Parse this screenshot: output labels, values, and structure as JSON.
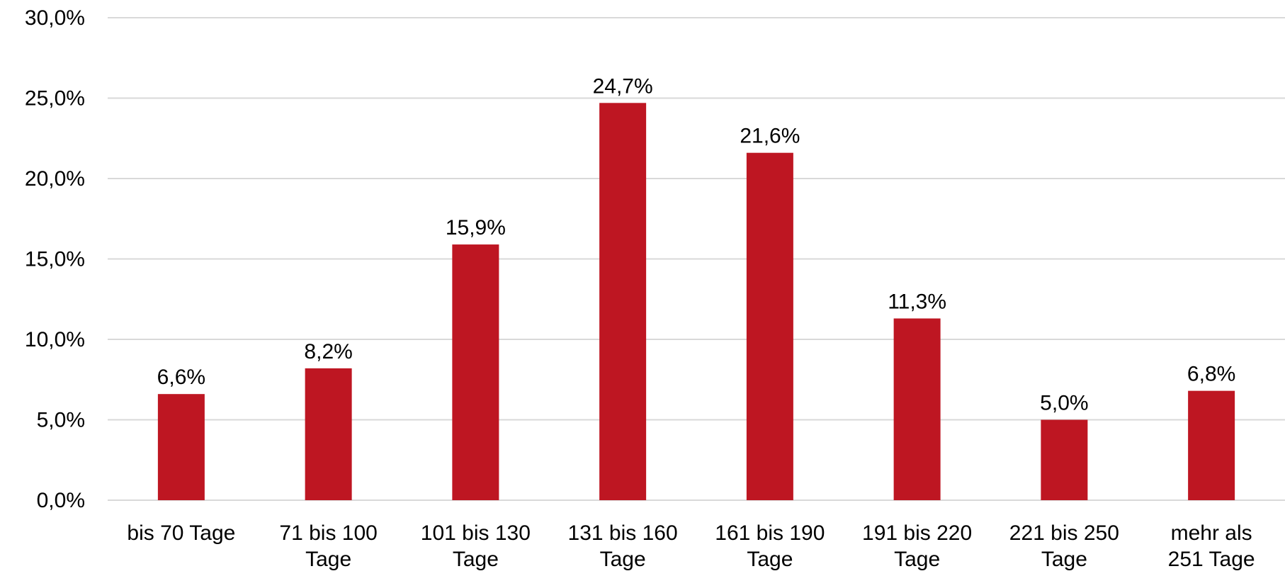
{
  "chart_data": {
    "type": "bar",
    "title": "",
    "xlabel": "",
    "ylabel": "",
    "categories": [
      [
        "bis 70 Tage"
      ],
      [
        "71 bis 100",
        "Tage"
      ],
      [
        "101 bis 130",
        "Tage"
      ],
      [
        "131 bis 160",
        "Tage"
      ],
      [
        "161 bis 190",
        "Tage"
      ],
      [
        "191 bis 220",
        "Tage"
      ],
      [
        "221 bis 250",
        "Tage"
      ],
      [
        "mehr als",
        "251 Tage"
      ]
    ],
    "values": [
      6.6,
      8.2,
      15.9,
      24.7,
      21.6,
      11.3,
      5.0,
      6.8
    ],
    "data_labels": [
      "6,6%",
      "8,2%",
      "15,9%",
      "24,7%",
      "21,6%",
      "11,3%",
      "5,0%",
      "6,8%"
    ],
    "ylim": [
      0,
      30
    ],
    "yticks": [
      0,
      5,
      10,
      15,
      20,
      25,
      30
    ],
    "ytick_labels": [
      "0,0%",
      "5,0%",
      "10,0%",
      "15,0%",
      "20,0%",
      "25,0%",
      "30,0%"
    ],
    "grid": true,
    "legend": "none",
    "bar_color": "#be1622"
  }
}
